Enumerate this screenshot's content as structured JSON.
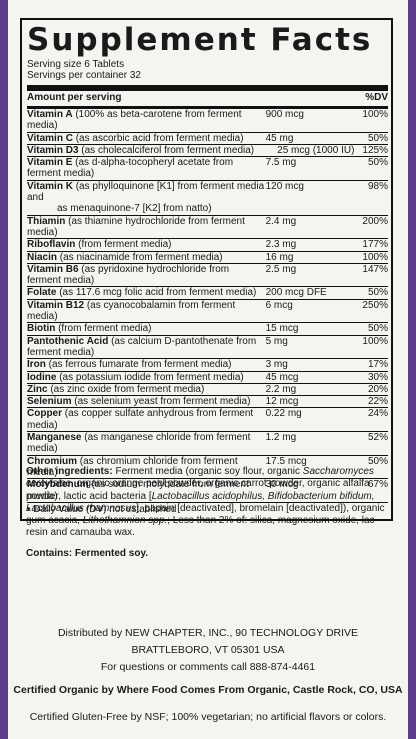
{
  "title": "Supplement Facts",
  "serving_size": "Serving size 6 Tablets",
  "servings_per_container": "Servings per container 32",
  "header": {
    "amount": "Amount per serving",
    "dv": "%DV"
  },
  "nutrients": [
    {
      "name": "Vitamin A",
      "source": " (100% as beta-carotene from ferment media)",
      "amount": "900 mcg",
      "dv": "100%"
    },
    {
      "name": "Vitamin C",
      "source": " (as ascorbic acid from ferment media)",
      "amount": "45 mg",
      "dv": "50%"
    },
    {
      "name": "Vitamin D3",
      "source": " (as cholecalciferol from ferment media)",
      "amount": "25 mcg (1000 IU)",
      "dv": "125%"
    },
    {
      "name": "Vitamin E",
      "source": " (as d-alpha-tocopheryl acetate from ferment media)",
      "amount": "7.5 mg",
      "dv": "50%"
    },
    {
      "name": "Vitamin K",
      "source": " (as phylloquinone [K1] from ferment media and",
      "source2": "as menaquinone-7 [K2] from natto)",
      "amount": "120 mcg",
      "dv": "98%"
    },
    {
      "name": "Thiamin",
      "source": " (as thiamine hydrochloride from ferment media)",
      "amount": "2.4 mg",
      "dv": "200%"
    },
    {
      "name": "Riboflavin",
      "source": " (from ferment media)",
      "amount": "2.3 mg",
      "dv": "177%"
    },
    {
      "name": "Niacin",
      "source": " (as niacinamide from ferment media)",
      "amount": "16 mg",
      "dv": "100%"
    },
    {
      "name": "Vitamin B6",
      "source": " (as pyridoxine hydrochloride from ferment media)",
      "amount": "2.5 mg",
      "dv": "147%"
    },
    {
      "name": "Folate",
      "source": " (as 117.6 mcg folic acid from ferment media)",
      "amount": "200 mcg DFE",
      "dv": "50%"
    },
    {
      "name": "Vitamin B12",
      "source": " (as cyanocobalamin from ferment media)",
      "amount": "6 mcg",
      "dv": "250%"
    },
    {
      "name": "Biotin",
      "source": " (from ferment media)",
      "amount": "15 mcg",
      "dv": "50%"
    },
    {
      "name": "Pantothenic Acid",
      "source": " (as calcium D-pantothenate from ferment media)",
      "amount": "5 mg",
      "dv": "100%"
    },
    {
      "name": "Iron",
      "source": " (as ferrous fumarate from ferment media)",
      "amount": "3 mg",
      "dv": "17%"
    },
    {
      "name": "Iodine",
      "source": " (as potassium iodide from ferment media)",
      "amount": "45 mcg",
      "dv": "30%"
    },
    {
      "name": "Zinc",
      "source": " (as zinc oxide from ferment media)",
      "amount": "2.2 mg",
      "dv": "20%"
    },
    {
      "name": "Selenium",
      "source": " (as selenium yeast from ferment media)",
      "amount": "12 mcg",
      "dv": "22%"
    },
    {
      "name": "Copper",
      "source": " (as copper sulfate anhydrous from ferment media)",
      "amount": "0.22 mg",
      "dv": "24%"
    },
    {
      "name": "Manganese",
      "source": " (as manganese chloride from ferment media)",
      "amount": "1.2 mg",
      "dv": "52%"
    },
    {
      "name": "Chromium",
      "source": " (as chromium chloride from ferment media)",
      "amount": "17.5 mcg",
      "dv": "50%"
    },
    {
      "name": "Molybdenum",
      "source": " (as sodium molybdate from ferment media)",
      "amount": "30 mcg",
      "dv": "67%"
    }
  ],
  "footnote": "• Daily Value (DV) not established",
  "other_ingredients": {
    "label": "Other ingredients:",
    "p1": " Ferment media (organic soy flour, organic ",
    "i1": "Saccharomyces cerevisiae",
    "p2": ", organic orange peel powder, organic carrot powder, organic alfalfa powder, lactic acid bacteria [",
    "i2": "Lactobacillus acidophilus, Bifidobacterium bifidum, Lactobacillus rhamnosus",
    "p3": "], papain [deactivated], bromelain [deactivated]), organic gum acacia, ",
    "i3": "Lithothamnion spp.",
    "p4": "; Less than 2% of: silica, magnesium oxide, lac resin and carnauba wax."
  },
  "contains": "Contains: Fermented soy.",
  "distributor_1": "Distributed by NEW CHAPTER, INC., 90 TECHNOLOGY DRIVE",
  "distributor_2": "BRATTLEBORO, VT 05301 USA",
  "questions": "For questions or comments call 888-874-4461",
  "certified_organic": "Certified Organic by Where Food Comes From Organic, Castle Rock, CO, USA",
  "gluten_free": "Certified Gluten-Free by NSF; 100% vegetarian; no artificial flavors or colors."
}
